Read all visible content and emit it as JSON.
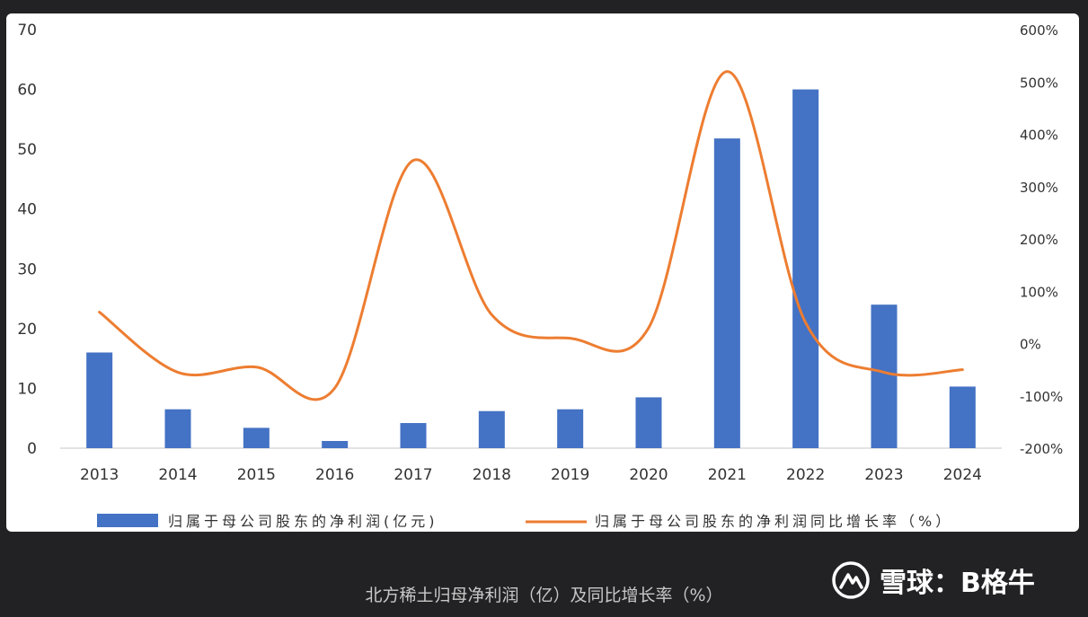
{
  "chart_data": {
    "type": "bar+line",
    "categories": [
      "2013",
      "2014",
      "2015",
      "2016",
      "2017",
      "2018",
      "2019",
      "2020",
      "2021",
      "2022",
      "2023",
      "2024"
    ],
    "series": [
      {
        "name": "归属于母公司股东的净利润(亿元)",
        "type": "bar",
        "axis": "left",
        "color": "#4472C4",
        "values": [
          16.0,
          6.5,
          3.4,
          1.2,
          4.2,
          6.2,
          6.5,
          8.5,
          51.8,
          60.0,
          24.0,
          10.3
        ]
      },
      {
        "name": "归属于母公司股东的净利润同比增长率（%）",
        "type": "line",
        "axis": "right",
        "color": "#ED7D31",
        "values": [
          60,
          -55,
          -45,
          -85,
          350,
          55,
          10,
          30,
          520,
          40,
          -55,
          -50
        ]
      }
    ],
    "y_left": {
      "min": 0,
      "max": 70,
      "ticks": [
        "0",
        "10",
        "20",
        "30",
        "40",
        "50",
        "60",
        "70"
      ]
    },
    "y_right": {
      "min": -200,
      "max": 600,
      "ticks": [
        "-200%",
        "-100%",
        "0%",
        "100%",
        "200%",
        "300%",
        "400%",
        "500%",
        "600%"
      ]
    },
    "grid": false,
    "legend_position": "bottom"
  },
  "caption": "北方稀土归母净利润（亿）及同比增长率（%）",
  "watermark": {
    "logo_icon": "xueqiu-logo-icon",
    "text": "雪球：B格牛"
  }
}
